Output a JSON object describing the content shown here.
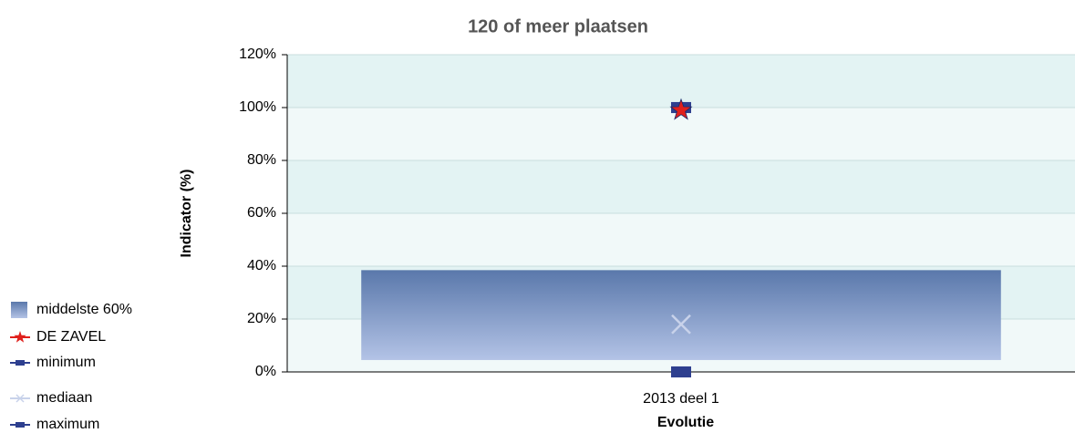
{
  "chart_data": {
    "type": "range-bar",
    "title": "120 of meer plaatsen",
    "ylabel": "Indicator (%)",
    "xlabel": "Evolutie",
    "categories": [
      "2013 deel 1"
    ],
    "series": [
      {
        "name": "middelste 60%",
        "color": "#5a78ab",
        "marker": "bar",
        "values": [
          [
            4.5,
            38.5
          ]
        ]
      },
      {
        "name": "DE ZAVEL",
        "color": "#e0201c",
        "marker": "star",
        "values": [
          99
        ]
      },
      {
        "name": "minimum",
        "color": "#2e3f8f",
        "marker": "square",
        "values": [
          0
        ]
      },
      {
        "name": "mediaan",
        "color": "#c8d2ea",
        "marker": "x",
        "values": [
          18
        ]
      },
      {
        "name": "maximum",
        "color": "#2e3f8f",
        "marker": "square",
        "values": [
          100
        ]
      }
    ],
    "ylim": [
      0,
      120
    ],
    "yticks": [
      {
        "value": 0,
        "label": "0%"
      },
      {
        "value": 20,
        "label": "20%"
      },
      {
        "value": 40,
        "label": "40%"
      },
      {
        "value": 60,
        "label": "60%"
      },
      {
        "value": 80,
        "label": "80%"
      },
      {
        "value": 100,
        "label": "100%"
      },
      {
        "value": 120,
        "label": "120%"
      }
    ],
    "grid": true
  }
}
